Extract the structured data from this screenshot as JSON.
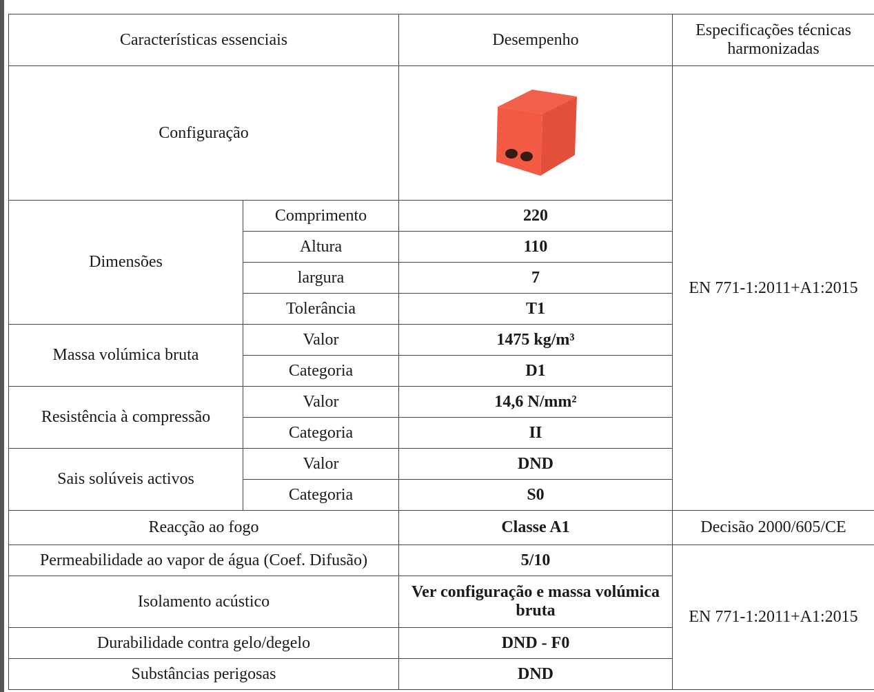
{
  "table": {
    "header": [
      "Características essenciais",
      "Desempenho",
      "Especificações técnicas harmonizadas"
    ],
    "configuration": "Configuração",
    "groups": [
      {
        "label": "Dimensões",
        "rows": [
          [
            "Comprimento",
            "220"
          ],
          [
            "Altura",
            "110"
          ],
          [
            "largura",
            "7"
          ],
          [
            "Tolerância",
            "T1"
          ]
        ]
      },
      {
        "label": "Massa volúmica bruta",
        "rows": [
          [
            "Valor",
            "1475 kg/m³"
          ],
          [
            "Categoria",
            "D1"
          ]
        ]
      },
      {
        "label": "Resistência à compressão",
        "rows": [
          [
            "Valor",
            "14,6 N/mm²"
          ],
          [
            "Categoria",
            "II"
          ]
        ]
      },
      {
        "label": "Sais solúveis activos",
        "rows": [
          [
            "Valor",
            "DND"
          ],
          [
            "Categoria",
            "S0"
          ]
        ]
      }
    ],
    "rows": [
      [
        "Reacção ao fogo",
        "Classe A1"
      ],
      [
        "Permeabilidade ao vapor de água (Coef. Difusão)",
        "5/10"
      ],
      [
        "Isolamento acústico",
        "Ver configuração e massa volúmica bruta"
      ],
      [
        "Durabilidade contra gelo/degelo",
        "DND - F0"
      ],
      [
        "Substâncias perigosas",
        "DND"
      ]
    ],
    "specs": [
      "EN 771-1:2011+A1:2015",
      "Decisão 2000/605/CE",
      "EN 771-1:2011+A1:2015"
    ]
  }
}
